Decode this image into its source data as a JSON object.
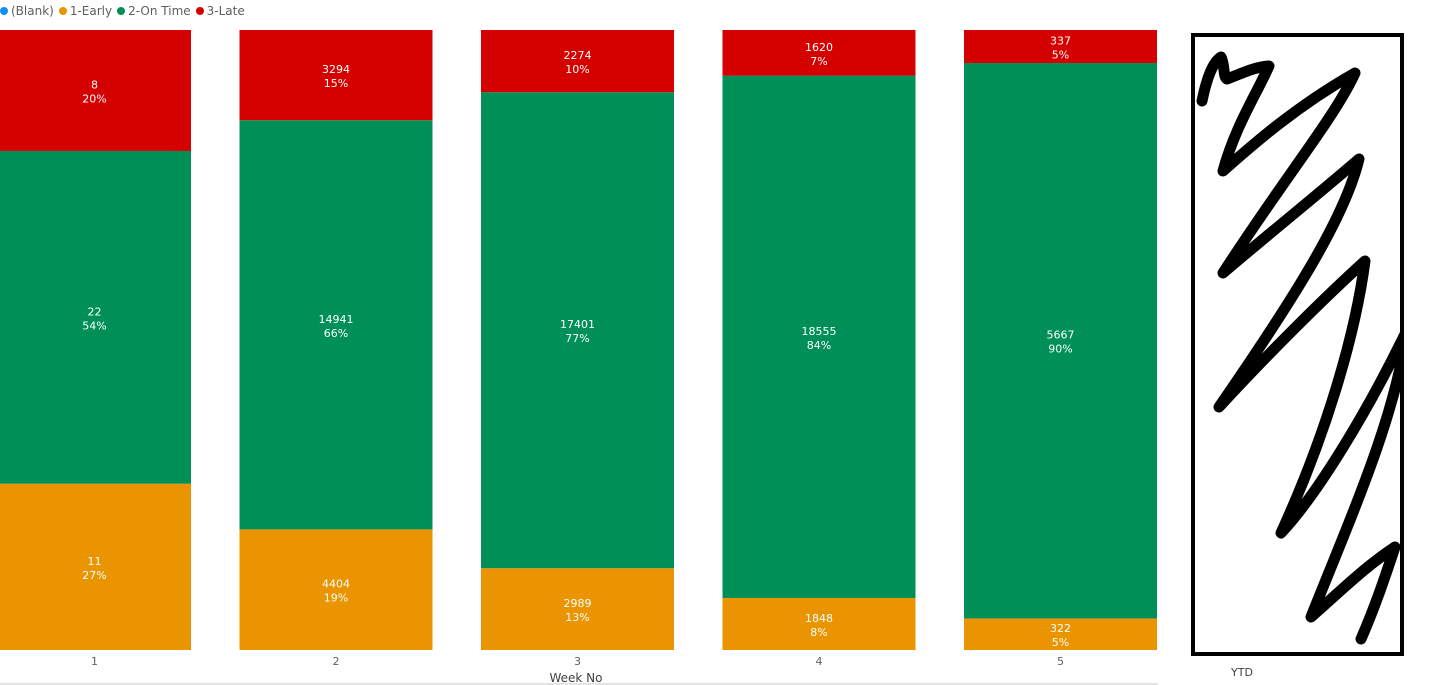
{
  "legend": {
    "items": [
      {
        "label": "(Blank)",
        "color": "#118dff"
      },
      {
        "label": "1-Early",
        "color": "#e99400"
      },
      {
        "label": "2-On Time",
        "color": "#009057"
      },
      {
        "label": "3-Late",
        "color": "#d50000"
      }
    ]
  },
  "chart_data": {
    "type": "bar",
    "stacked": "100%",
    "xlabel": "Week No",
    "categories": [
      "1",
      "2",
      "3",
      "4",
      "5"
    ],
    "series": [
      {
        "name": "1-Early",
        "color": "#e99400",
        "values": [
          11,
          4404,
          2989,
          1848,
          322
        ],
        "percent_labels": [
          "27%",
          "19%",
          "13%",
          "8%",
          "5%"
        ]
      },
      {
        "name": "2-On Time",
        "color": "#009057",
        "values": [
          22,
          14941,
          17401,
          18555,
          5667
        ],
        "percent_labels": [
          "54%",
          "66%",
          "77%",
          "84%",
          "90%"
        ]
      },
      {
        "name": "3-Late",
        "color": "#d50000",
        "values": [
          8,
          3294,
          2274,
          1620,
          337
        ],
        "percent_labels": [
          "20%",
          "15%",
          "10%",
          "7%",
          "5%"
        ]
      }
    ],
    "legend": "top-left",
    "grid": false
  },
  "ytd": {
    "label": "YTD"
  }
}
